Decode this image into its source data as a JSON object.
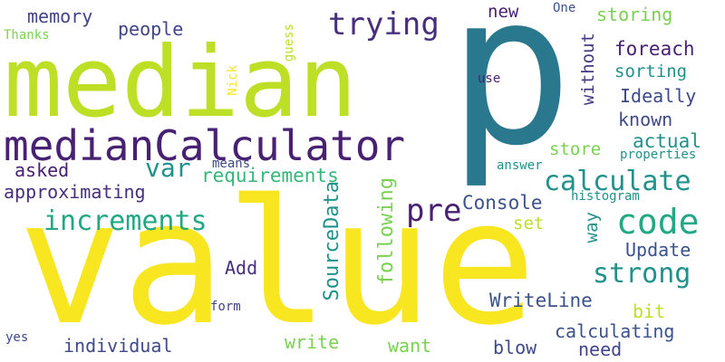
{
  "words": [
    {
      "id": "p",
      "text": "p"
    },
    {
      "id": "median",
      "text": "median"
    },
    {
      "id": "value",
      "text": "value"
    },
    {
      "id": "medianCalculator",
      "text": "medianCalculator"
    },
    {
      "id": "trying",
      "text": "trying"
    },
    {
      "id": "code",
      "text": "code"
    },
    {
      "id": "calculate",
      "text": "calculate"
    },
    {
      "id": "increments",
      "text": "increments"
    },
    {
      "id": "strong",
      "text": "strong"
    },
    {
      "id": "pre",
      "text": "pre"
    },
    {
      "id": "var",
      "text": "var"
    },
    {
      "id": "people",
      "text": "people"
    },
    {
      "id": "memory",
      "text": "memory"
    },
    {
      "id": "new",
      "text": "new"
    },
    {
      "id": "storing",
      "text": "storing"
    },
    {
      "id": "foreach",
      "text": "foreach"
    },
    {
      "id": "sorting",
      "text": "sorting"
    },
    {
      "id": "Ideally",
      "text": "Ideally"
    },
    {
      "id": "known",
      "text": "known"
    },
    {
      "id": "actual",
      "text": "actual"
    },
    {
      "id": "store",
      "text": "store"
    },
    {
      "id": "asked",
      "text": "asked"
    },
    {
      "id": "requirements",
      "text": "requirements"
    },
    {
      "id": "approximating",
      "text": "approximating"
    },
    {
      "id": "Console",
      "text": "Console"
    },
    {
      "id": "set",
      "text": "set"
    },
    {
      "id": "Update",
      "text": "Update"
    },
    {
      "id": "Add",
      "text": "Add"
    },
    {
      "id": "WriteLine",
      "text": "WriteLine"
    },
    {
      "id": "bit",
      "text": "bit"
    },
    {
      "id": "calculating",
      "text": "calculating"
    },
    {
      "id": "individual",
      "text": "individual"
    },
    {
      "id": "write",
      "text": "write"
    },
    {
      "id": "want",
      "text": "want"
    },
    {
      "id": "blow",
      "text": "blow"
    },
    {
      "id": "need",
      "text": "need"
    },
    {
      "id": "yes",
      "text": "yes"
    },
    {
      "id": "form",
      "text": "form"
    },
    {
      "id": "Thanks",
      "text": "Thanks"
    },
    {
      "id": "use",
      "text": "use"
    },
    {
      "id": "One",
      "text": "One"
    },
    {
      "id": "means",
      "text": "means"
    },
    {
      "id": "answer",
      "text": "answer"
    },
    {
      "id": "properties",
      "text": "properties"
    },
    {
      "id": "histogram",
      "text": "histogram"
    },
    {
      "id": "without",
      "text": "without"
    },
    {
      "id": "way",
      "text": "way"
    },
    {
      "id": "SourceData",
      "text": "SourceData"
    },
    {
      "id": "following",
      "text": "following"
    },
    {
      "id": "Nick",
      "text": "Nick"
    },
    {
      "id": "guess",
      "text": "guess"
    }
  ]
}
